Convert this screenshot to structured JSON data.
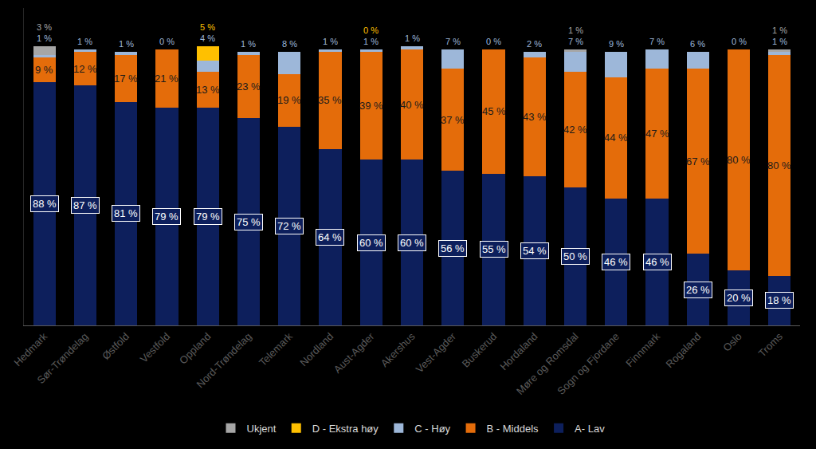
{
  "chart_data": {
    "type": "bar",
    "categories": [
      "Hedmark",
      "Sør-Trøndelag",
      "Østfold",
      "Vestfold",
      "Oppland",
      "Nord-Trøndelag",
      "Telemark",
      "Nordland",
      "Aust-Agder",
      "Akershus",
      "Vest-Agder",
      "Buskerud",
      "Hordaland",
      "Møre og Romsdal",
      "Sogn og Fjordane",
      "Finnmark",
      "Rogaland",
      "Oslo",
      "Troms"
    ],
    "series": [
      {
        "name": "A- Lav",
        "color": "#0d1f5c",
        "values": [
          88,
          87,
          81,
          79,
          79,
          75,
          72,
          64,
          60,
          60,
          56,
          55,
          54,
          50,
          46,
          46,
          26,
          20,
          18
        ],
        "value_labels": [
          "88 %",
          "87 %",
          "81 %",
          "79 %",
          "79 %",
          "75 %",
          "72 %",
          "64 %",
          "60 %",
          "60 %",
          "56 %",
          "55 %",
          "54 %",
          "50 %",
          "46 %",
          "46 %",
          "26 %",
          "20 %",
          "18 %"
        ]
      },
      {
        "name": "B - Middels",
        "color": "#e46c0a",
        "values": [
          9,
          12,
          17,
          21,
          13,
          23,
          19,
          35,
          39,
          40,
          37,
          45,
          43,
          42,
          44,
          47,
          67,
          80,
          80
        ],
        "value_labels": [
          "9 %",
          "12 %",
          "17 %",
          "21 %",
          "13 %",
          "23 %",
          "19 %",
          "35 %",
          "39 %",
          "40 %",
          "37 %",
          "45 %",
          "43 %",
          "42 %",
          "44 %",
          "47 %",
          "67 %",
          "80 %",
          "80 %"
        ]
      },
      {
        "name": "C - Høy",
        "color": "#9db7d9",
        "values": [
          1,
          1,
          1,
          0,
          4,
          1,
          8,
          1,
          1,
          1,
          7,
          0,
          2,
          7,
          9,
          7,
          6,
          0,
          1
        ],
        "value_labels": [
          "1 %",
          "1 %",
          "1 %",
          "0 %",
          "4 %",
          "1 %",
          "8 %",
          "1 %",
          "1 %",
          "1 %",
          "7 %",
          "0 %",
          "2 %",
          "7 %",
          "9 %",
          "7 %",
          "6 %",
          "0 %",
          "1 %"
        ]
      },
      {
        "name": "D - Ekstra høy",
        "color": "#ffc000",
        "values": [
          null,
          null,
          null,
          null,
          5,
          null,
          null,
          null,
          0,
          null,
          null,
          null,
          null,
          null,
          null,
          null,
          null,
          null,
          null
        ],
        "value_labels": [
          null,
          null,
          null,
          null,
          "5 %",
          null,
          null,
          null,
          "0 %",
          null,
          null,
          null,
          null,
          null,
          null,
          null,
          null,
          null,
          null
        ]
      },
      {
        "name": "Ukjent",
        "color": "#a6a6a6",
        "values": [
          3,
          null,
          null,
          null,
          null,
          null,
          null,
          null,
          null,
          null,
          null,
          null,
          null,
          1,
          null,
          null,
          null,
          null,
          1
        ],
        "value_labels": [
          "3 %",
          null,
          null,
          null,
          null,
          null,
          null,
          null,
          null,
          null,
          null,
          null,
          null,
          "1 %",
          null,
          null,
          null,
          null,
          "1 %"
        ]
      }
    ],
    "ylim": [
      0,
      115
    ],
    "yticks": [],
    "stacked": true,
    "data_labels": true,
    "legend": "bottom",
    "tick_labels": "x",
    "grid": false
  }
}
